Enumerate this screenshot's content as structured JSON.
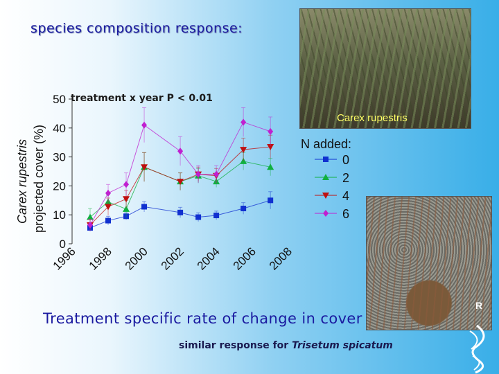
{
  "slide": {
    "title": "species composition response:",
    "significance": "treatment x year P < 0.01",
    "photo_caption": "Carex rupestris",
    "bottom_text": "Treatment specific rate of change in cover",
    "footnote_prefix": "similar response for ",
    "footnote_species": "Trisetum spicatum"
  },
  "chart_data": {
    "type": "line",
    "ylabel_italic": "Carex rupestris",
    "ylabel": "projected cover (%)",
    "xlabel": "",
    "ylim": [
      0,
      50
    ],
    "yticks": [
      0,
      10,
      20,
      30,
      40,
      50
    ],
    "xticks": [
      "1996",
      "1998",
      "2000",
      "2002",
      "2004",
      "2006",
      "2008"
    ],
    "xlim": [
      1996,
      2008.3
    ],
    "legend_title": "N added:",
    "legend_position": "right",
    "error_bars": true,
    "series": [
      {
        "name": "0",
        "color": "#1030d0",
        "marker": "square",
        "x": [
          1997,
          1998,
          1999,
          2000,
          2002,
          2003,
          2004,
          2005.5,
          2007
        ],
        "y": [
          5.5,
          8,
          9.5,
          12.8,
          10.8,
          9.2,
          9.8,
          12.2,
          15
        ],
        "err": [
          1.2,
          1.5,
          1.2,
          1.8,
          1.8,
          1.5,
          1.5,
          2,
          3
        ]
      },
      {
        "name": "2",
        "color": "#10b040",
        "marker": "triangle-up",
        "x": [
          1997,
          1998,
          1999,
          2000,
          2002,
          2003,
          2004,
          2005.5,
          2007
        ],
        "y": [
          9.2,
          14.5,
          12,
          26.5,
          21.5,
          23.5,
          21.5,
          28.5,
          26.5
        ],
        "err": [
          3,
          2.5,
          3,
          5,
          3,
          2.5,
          2,
          3,
          3
        ]
      },
      {
        "name": "4",
        "color": "#c01010",
        "marker": "triangle-down",
        "x": [
          1997,
          1998,
          1999,
          2000,
          2002,
          2003,
          2004,
          2005.5,
          2007
        ],
        "y": [
          6.5,
          12.8,
          15.5,
          26.5,
          21.5,
          24,
          23.5,
          32.5,
          33.5
        ],
        "err": [
          2,
          3,
          3,
          5,
          3,
          2.5,
          2.5,
          4,
          4
        ]
      },
      {
        "name": "6",
        "color": "#c020d0",
        "marker": "diamond",
        "x": [
          1997,
          1998,
          1999,
          2000,
          2002,
          2003,
          2004,
          2005.5,
          2007
        ],
        "y": [
          6.5,
          17.5,
          20.5,
          41,
          32,
          24,
          24,
          42,
          38.8
        ],
        "err": [
          2,
          3,
          4,
          6,
          5,
          3,
          3,
          5,
          5
        ]
      }
    ]
  }
}
